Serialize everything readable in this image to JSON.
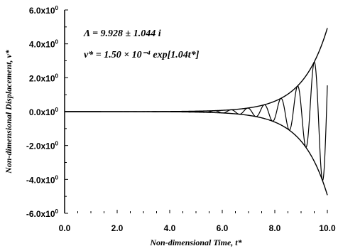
{
  "chart_data": {
    "type": "line",
    "xlabel": "Non-dimensional Time, t*",
    "ylabel": "Non-dimensional Displacement, v*",
    "xlim": [
      0,
      10
    ],
    "ylim": [
      -6,
      6
    ],
    "x_ticks": [
      "0.0",
      "2.0",
      "4.0",
      "6.0",
      "8.0",
      "10.0"
    ],
    "y_ticks": [
      {
        "mantissa": "6.0x10",
        "exp": "0"
      },
      {
        "mantissa": "4.0x10",
        "exp": "0"
      },
      {
        "mantissa": "2.0x10",
        "exp": "0"
      },
      {
        "mantissa": "0.0x10",
        "exp": "0"
      },
      {
        "mantissa": "-2.0x10",
        "exp": "0"
      },
      {
        "mantissa": "-4.0x10",
        "exp": "0"
      },
      {
        "mantissa": "-6.0x10",
        "exp": "0"
      }
    ],
    "annotations": [
      "Λ = 9.928 ± 1.044 i",
      "v* = 1.50 × 10⁻⁴ exp[1.04t*]"
    ],
    "envelope": {
      "amplitude": 0.00015,
      "growth_rate": 1.04
    },
    "oscillation": {
      "frequency": 9.928
    },
    "grid": false,
    "legend": "none"
  }
}
